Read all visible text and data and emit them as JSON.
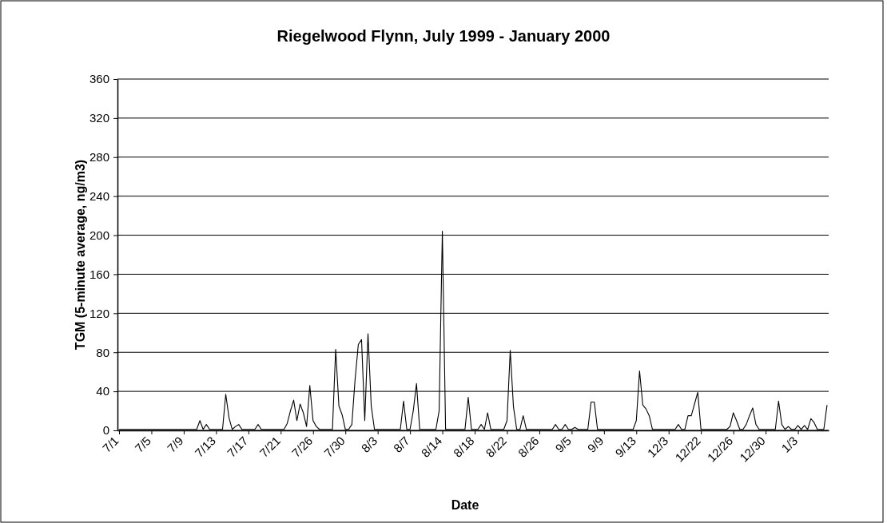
{
  "chart_data": {
    "type": "line",
    "title": "Riegelwood Flynn, July 1999 - January 2000",
    "xlabel": "Date",
    "ylabel": "TGM (5-minute average, ng/m3)",
    "categories": [
      "7/1",
      null,
      null,
      null,
      null,
      null,
      null,
      null,
      null,
      null,
      "7/5",
      null,
      null,
      null,
      null,
      null,
      null,
      null,
      null,
      null,
      "7/9",
      null,
      null,
      null,
      null,
      null,
      null,
      null,
      null,
      null,
      "7/13",
      null,
      null,
      null,
      null,
      null,
      null,
      null,
      null,
      null,
      "7/17",
      null,
      null,
      null,
      null,
      null,
      null,
      null,
      null,
      null,
      "7/21",
      null,
      null,
      null,
      null,
      null,
      null,
      null,
      null,
      null,
      "7/26",
      null,
      null,
      null,
      null,
      null,
      null,
      null,
      null,
      null,
      "7/30",
      null,
      null,
      null,
      null,
      null,
      null,
      null,
      null,
      null,
      "8/3",
      null,
      null,
      null,
      null,
      null,
      null,
      null,
      null,
      null,
      "8/7",
      null,
      null,
      null,
      null,
      null,
      null,
      null,
      null,
      null,
      "8/14",
      null,
      null,
      null,
      null,
      null,
      null,
      null,
      null,
      null,
      "8/18",
      null,
      null,
      null,
      null,
      null,
      null,
      null,
      null,
      null,
      "8/22",
      null,
      null,
      null,
      null,
      null,
      null,
      null,
      null,
      null,
      "8/26",
      null,
      null,
      null,
      null,
      null,
      null,
      null,
      null,
      null,
      "9/5",
      null,
      null,
      null,
      null,
      null,
      null,
      null,
      null,
      null,
      "9/9",
      null,
      null,
      null,
      null,
      null,
      null,
      null,
      null,
      null,
      "9/13",
      null,
      null,
      null,
      null,
      null,
      null,
      null,
      null,
      null,
      "12/3",
      null,
      null,
      null,
      null,
      null,
      null,
      null,
      null,
      null,
      "12/22",
      null,
      null,
      null,
      null,
      null,
      null,
      null,
      null,
      null,
      "12/26",
      null,
      null,
      null,
      null,
      null,
      null,
      null,
      null,
      null,
      "12/30",
      null,
      null,
      null,
      null,
      null,
      null,
      null,
      null,
      null,
      "1/3",
      null,
      null,
      null,
      null,
      null,
      null,
      null,
      null,
      null
    ],
    "series": [
      {
        "color": "#000000",
        "values": [
          1,
          1,
          1,
          1,
          1,
          1,
          1,
          1,
          1,
          1,
          1,
          1,
          1,
          1,
          1,
          1,
          1,
          1,
          1,
          1,
          1,
          1,
          1,
          1,
          1,
          10,
          1,
          6,
          1,
          1,
          1,
          1,
          1,
          37,
          13,
          1,
          4,
          6,
          1,
          1,
          1,
          1,
          1,
          6,
          1,
          1,
          1,
          1,
          1,
          1,
          1,
          1,
          7,
          20,
          31,
          10,
          27,
          18,
          4,
          46,
          10,
          4,
          1,
          1,
          1,
          1,
          1,
          83,
          25,
          16,
          1,
          1,
          6,
          52,
          88,
          93,
          10,
          99,
          25,
          1,
          1,
          1,
          1,
          1,
          1,
          1,
          1,
          1,
          30,
          1,
          1,
          20,
          48,
          1,
          1,
          1,
          1,
          1,
          1,
          20,
          204,
          1,
          1,
          1,
          1,
          1,
          1,
          1,
          34,
          1,
          1,
          1,
          6,
          1,
          18,
          1,
          1,
          1,
          1,
          1,
          10,
          82,
          24,
          1,
          1,
          15,
          1,
          1,
          1,
          1,
          1,
          1,
          1,
          1,
          1,
          6,
          1,
          1,
          6,
          1,
          1,
          3,
          1,
          1,
          1,
          1,
          29,
          29,
          1,
          1,
          1,
          1,
          1,
          1,
          1,
          1,
          1,
          1,
          1,
          1,
          10,
          61,
          26,
          22,
          15,
          1,
          1,
          1,
          1,
          1,
          1,
          1,
          1,
          6,
          1,
          1,
          15,
          15,
          27,
          39,
          1,
          1,
          1,
          1,
          1,
          1,
          1,
          1,
          1,
          4,
          18,
          10,
          1,
          1,
          6,
          15,
          23,
          6,
          1,
          1,
          1,
          1,
          1,
          1,
          30,
          6,
          1,
          4,
          1,
          1,
          5,
          1,
          5,
          1,
          12,
          8,
          1,
          1,
          1,
          26
        ]
      }
    ],
    "ylim": [
      0,
      360
    ],
    "yticks": [
      0,
      40,
      80,
      120,
      160,
      200,
      240,
      280,
      320,
      360
    ],
    "grid": "y",
    "marker": "none",
    "line_style": "solid"
  }
}
